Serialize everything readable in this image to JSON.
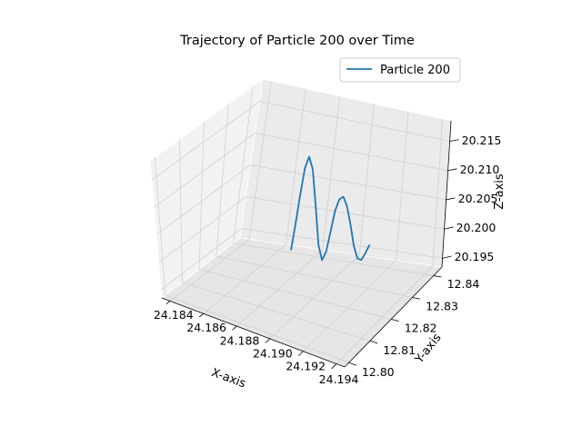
{
  "chart_data": {
    "type": "line",
    "title": "Trajectory of Particle 200 over Time",
    "xlabel": "X-axis",
    "ylabel": "Y-axis",
    "zlabel": "Z-axis",
    "x_ticks": [
      "24.184",
      "24.186",
      "24.188",
      "24.190",
      "24.192",
      "24.194"
    ],
    "y_ticks": [
      "12.80",
      "12.81",
      "12.82",
      "12.83",
      "12.84"
    ],
    "z_ticks": [
      "20.195",
      "20.200",
      "20.205",
      "20.210",
      "20.215"
    ],
    "legend": {
      "position": "top-right"
    },
    "grid": true,
    "series": [
      {
        "name": "Particle 200",
        "color": "#1f77b4",
        "x": [
          24.1885,
          24.1887,
          24.1889,
          24.1891,
          24.1893,
          24.1895,
          24.1897,
          24.1899,
          24.1901,
          24.1903,
          24.1905,
          24.1907,
          24.1909,
          24.1911,
          24.1913,
          24.1915,
          24.1917,
          24.1919,
          24.1921,
          24.1923,
          24.1925
        ],
        "y": [
          12.8218,
          12.822,
          12.8222,
          12.8224,
          12.8226,
          12.8228,
          12.823,
          12.8232,
          12.8234,
          12.8236,
          12.8238,
          12.824,
          12.8242,
          12.8244,
          12.8246,
          12.8248,
          12.825,
          12.8252,
          12.8254,
          12.8256,
          12.8258
        ],
        "z": [
          20.2,
          20.2045,
          20.2095,
          20.214,
          20.216,
          20.214,
          20.208,
          20.2015,
          20.199,
          20.2005,
          20.204,
          20.2075,
          20.2095,
          20.21,
          20.2085,
          20.2055,
          20.202,
          20.2,
          20.1998,
          20.201,
          20.2025
        ]
      }
    ]
  }
}
